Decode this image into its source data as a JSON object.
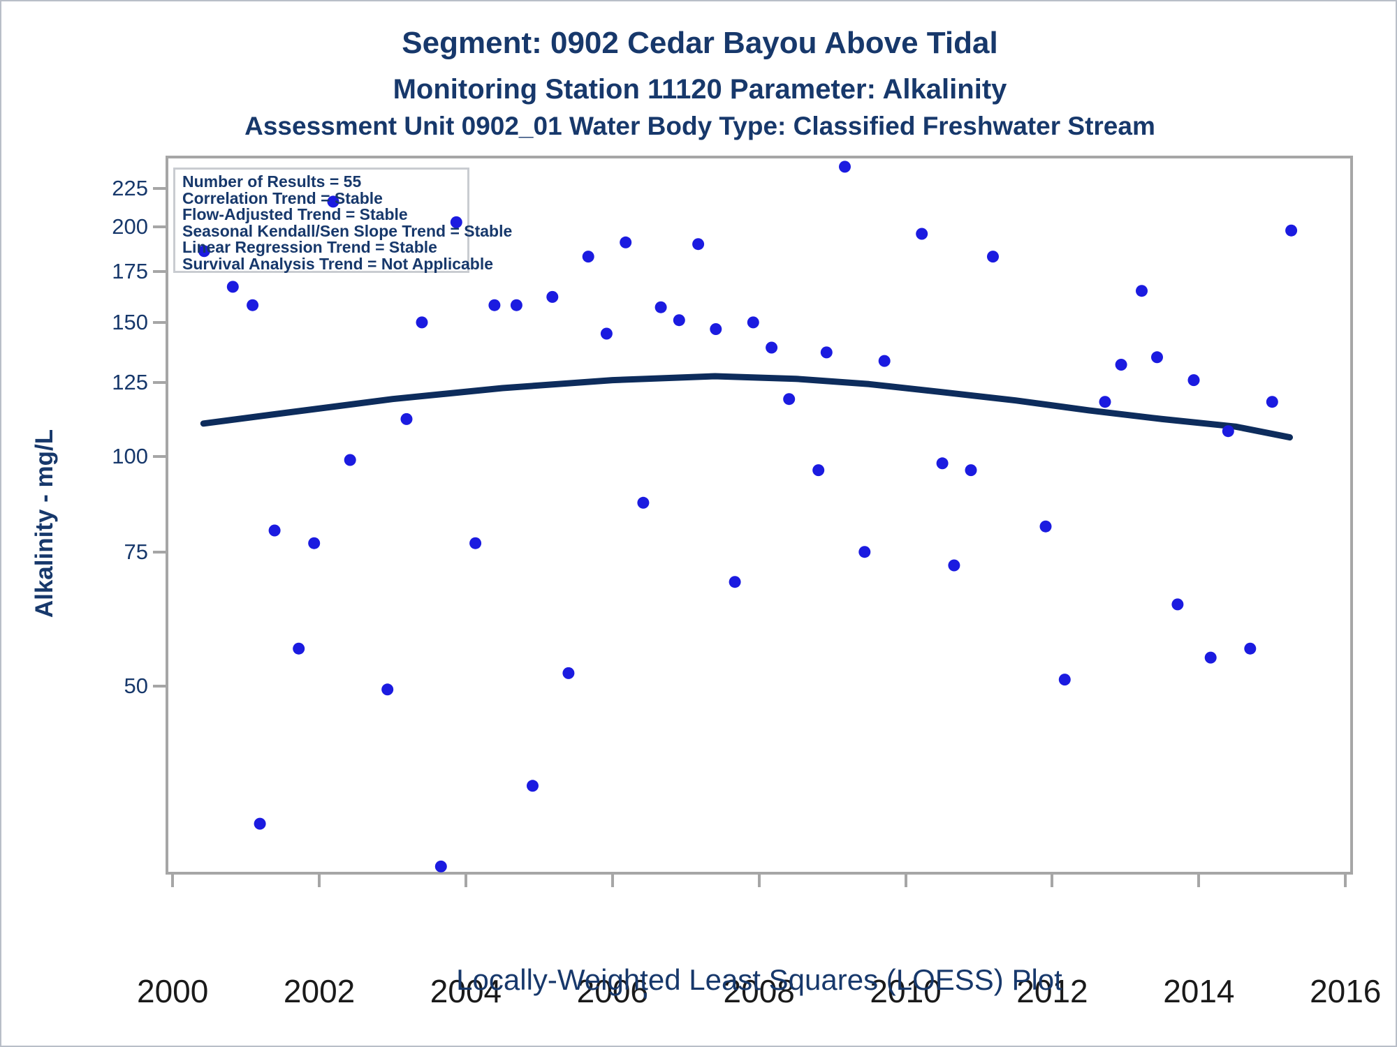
{
  "header": {
    "title1": "Segment: 0902  Cedar Bayou Above Tidal",
    "title2": "Monitoring Station 11120 Parameter: Alkalinity",
    "title3": "Assessment Unit 0902_01   Water Body Type: Classified Freshwater Stream"
  },
  "stats_box": {
    "lines": [
      "Number of Results = 55",
      "Correlation Trend = Stable",
      "Flow-Adjusted Trend = Stable",
      "Seasonal Kendall/Sen Slope Trend = Stable",
      "Linear Regression Trend = Stable",
      "Survival Analysis Trend = Not Applicable"
    ]
  },
  "footer": {
    "caption": "Locally-Weighted Least Squares (LOESS) Plot",
    "stray_mark": "'"
  },
  "colors": {
    "navy_text": "#17386b",
    "marker_blue": "#1b1be0",
    "trend_navy": "#0d2c5c",
    "axis_gray": "#a6a6a6",
    "xlabel_black": "#1a1a1a"
  },
  "chart_data": {
    "type": "scatter",
    "title": "Segment: 0902  Cedar Bayou Above Tidal",
    "xlabel": "",
    "ylabel": "Alkalinity - mg/L",
    "caption": "Locally-Weighted Least Squares (LOESS) Plot",
    "y_scale": "log10",
    "xlim": [
      1999.9,
      2016.1
    ],
    "ylim": [
      28,
      248
    ],
    "x_ticks": [
      2000,
      2002,
      2004,
      2006,
      2008,
      2010,
      2012,
      2014,
      2016
    ],
    "y_ticks": [
      225,
      200,
      175,
      150,
      125,
      100,
      75,
      50
    ],
    "grid": false,
    "legend_position": "top-left-inset",
    "points": [
      [
        2000.43,
        186
      ],
      [
        2000.82,
        167
      ],
      [
        2001.09,
        158
      ],
      [
        2001.19,
        33
      ],
      [
        2001.39,
        80
      ],
      [
        2001.72,
        56
      ],
      [
        2001.93,
        77
      ],
      [
        2002.19,
        216
      ],
      [
        2002.42,
        99
      ],
      [
        2002.93,
        49.5
      ],
      [
        2003.19,
        112
      ],
      [
        2003.4,
        150
      ],
      [
        2003.66,
        29
      ],
      [
        2003.87,
        203
      ],
      [
        2004.13,
        77
      ],
      [
        2004.39,
        158
      ],
      [
        2004.69,
        158
      ],
      [
        2004.91,
        37
      ],
      [
        2005.18,
        162
      ],
      [
        2005.4,
        52
      ],
      [
        2005.67,
        183
      ],
      [
        2005.92,
        145
      ],
      [
        2006.18,
        191
      ],
      [
        2006.42,
        87
      ],
      [
        2006.66,
        157
      ],
      [
        2006.91,
        151
      ],
      [
        2007.17,
        190
      ],
      [
        2007.41,
        147
      ],
      [
        2007.67,
        68.5
      ],
      [
        2007.92,
        150
      ],
      [
        2008.17,
        139
      ],
      [
        2008.41,
        119
      ],
      [
        2008.81,
        96
      ],
      [
        2008.92,
        137
      ],
      [
        2009.17,
        240
      ],
      [
        2009.44,
        75
      ],
      [
        2009.71,
        133.5
      ],
      [
        2010.22,
        196
      ],
      [
        2010.5,
        98
      ],
      [
        2010.66,
        72
      ],
      [
        2010.89,
        96
      ],
      [
        2011.19,
        183
      ],
      [
        2011.91,
        81
      ],
      [
        2012.17,
        51
      ],
      [
        2012.72,
        118
      ],
      [
        2012.94,
        132
      ],
      [
        2013.22,
        165
      ],
      [
        2013.43,
        135
      ],
      [
        2013.71,
        64
      ],
      [
        2013.93,
        126
      ],
      [
        2014.16,
        54.5
      ],
      [
        2014.4,
        108
      ],
      [
        2014.7,
        56
      ],
      [
        2015.0,
        118
      ],
      [
        2015.26,
        198
      ]
    ],
    "loess_trend": [
      [
        2000.42,
        110.5
      ],
      [
        2001.5,
        114
      ],
      [
        2003.0,
        119
      ],
      [
        2004.5,
        123
      ],
      [
        2006.0,
        126
      ],
      [
        2007.4,
        127.5
      ],
      [
        2008.5,
        126.5
      ],
      [
        2009.5,
        124.5
      ],
      [
        2010.5,
        121.5
      ],
      [
        2011.5,
        118.5
      ],
      [
        2012.5,
        115
      ],
      [
        2013.5,
        112
      ],
      [
        2014.5,
        109.5
      ],
      [
        2015.24,
        106
      ]
    ]
  }
}
